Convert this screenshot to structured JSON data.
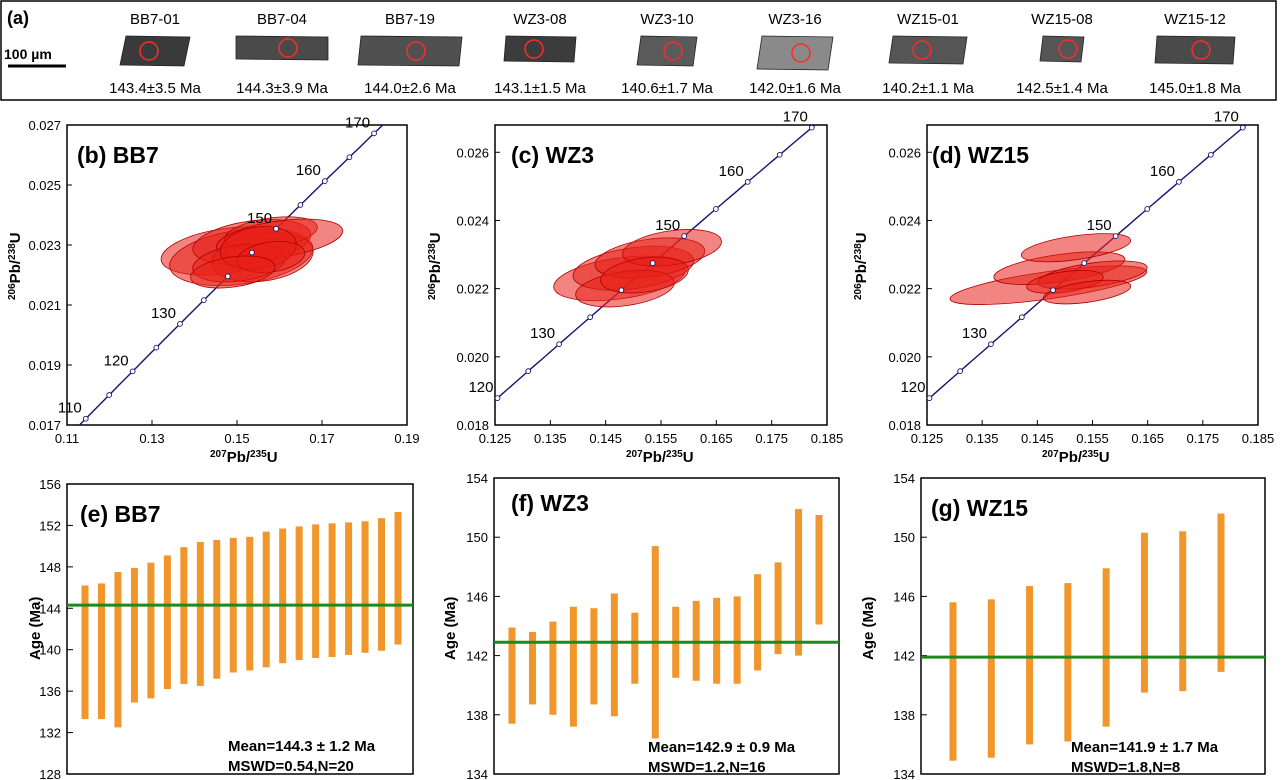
{
  "panel_a": {
    "label": "(a)",
    "scale_label": "100 µm",
    "grains": [
      {
        "name": "BB7-01",
        "age": "143.4±3.5 Ma"
      },
      {
        "name": "BB7-04",
        "age": "144.3±3.9 Ma"
      },
      {
        "name": "BB7-19",
        "age": "144.0±2.6 Ma"
      },
      {
        "name": "WZ3-08",
        "age": "143.1±1.5 Ma"
      },
      {
        "name": "WZ3-10",
        "age": "140.6±1.7 Ma"
      },
      {
        "name": "WZ3-16",
        "age": "142.0±1.6 Ma"
      },
      {
        "name": "WZ15-01",
        "age": "140.2±1.1 Ma"
      },
      {
        "name": "WZ15-08",
        "age": "142.5±1.4 Ma"
      },
      {
        "name": "WZ15-12",
        "age": "145.0±1.8 Ma"
      }
    ]
  },
  "chart_data": [
    {
      "type": "scatter",
      "panel": "(b) BB7",
      "xlabel": "207Pb/235U",
      "ylabel": "206Pb/238U",
      "xlim": [
        0.11,
        0.19
      ],
      "ylim": [
        0.017,
        0.027
      ],
      "xticks": [
        "0.11",
        "0.13",
        "0.15",
        "0.17",
        "0.19"
      ],
      "yticks": [
        "0.017",
        "0.019",
        "0.021",
        "0.023",
        "0.025",
        "0.027"
      ],
      "concordia_ages": [
        "110",
        "120",
        "130",
        "150",
        "160",
        "170"
      ],
      "ellipses": [
        {
          "x": 0.1475,
          "y": 0.0228,
          "rx": 0.0155,
          "ry": 0.00075
        },
        {
          "x": 0.151,
          "y": 0.0226,
          "rx": 0.017,
          "ry": 0.0009
        },
        {
          "x": 0.1535,
          "y": 0.0231,
          "rx": 0.014,
          "ry": 0.0007
        },
        {
          "x": 0.156,
          "y": 0.0226,
          "rx": 0.012,
          "ry": 0.0008
        },
        {
          "x": 0.158,
          "y": 0.0234,
          "rx": 0.011,
          "ry": 0.0005
        },
        {
          "x": 0.16,
          "y": 0.0232,
          "rx": 0.015,
          "ry": 0.0006
        },
        {
          "x": 0.1505,
          "y": 0.0224,
          "rx": 0.011,
          "ry": 0.0006
        },
        {
          "x": 0.155,
          "y": 0.0229,
          "rx": 0.009,
          "ry": 0.0007
        },
        {
          "x": 0.158,
          "y": 0.0226,
          "rx": 0.008,
          "ry": 0.0005
        },
        {
          "x": 0.149,
          "y": 0.0221,
          "rx": 0.01,
          "ry": 0.0005
        }
      ]
    },
    {
      "type": "scatter",
      "panel": "(c) WZ3",
      "xlabel": "207Pb/235U",
      "ylabel": "206Pb/238U",
      "xlim": [
        0.125,
        0.185
      ],
      "ylim": [
        0.018,
        0.0268
      ],
      "xticks": [
        "0.125",
        "0.135",
        "0.145",
        "0.155",
        "0.165",
        "0.175",
        "0.185"
      ],
      "yticks": [
        "0.018",
        "0.020",
        "0.022",
        "0.024",
        "0.026"
      ],
      "concordia_ages": [
        "120",
        "130",
        "150",
        "160",
        "170"
      ],
      "ellipses": [
        {
          "x": 0.1475,
          "y": 0.0223,
          "rx": 0.012,
          "ry": 0.0006
        },
        {
          "x": 0.15,
          "y": 0.0226,
          "rx": 0.011,
          "ry": 0.0006
        },
        {
          "x": 0.153,
          "y": 0.0229,
          "rx": 0.01,
          "ry": 0.00055
        },
        {
          "x": 0.157,
          "y": 0.0232,
          "rx": 0.009,
          "ry": 0.0005
        },
        {
          "x": 0.1485,
          "y": 0.022,
          "rx": 0.009,
          "ry": 0.0005
        },
        {
          "x": 0.152,
          "y": 0.0224,
          "rx": 0.008,
          "ry": 0.0005
        }
      ]
    },
    {
      "type": "scatter",
      "panel": "(d) WZ15",
      "xlabel": "207Pb/235U",
      "ylabel": "206Pb/238U",
      "xlim": [
        0.125,
        0.185
      ],
      "ylim": [
        0.018,
        0.0268
      ],
      "xticks": [
        "0.125",
        "0.135",
        "0.145",
        "0.155",
        "0.165",
        "0.175",
        "0.185"
      ],
      "yticks": [
        "0.018",
        "0.020",
        "0.022",
        "0.024",
        "0.026"
      ],
      "concordia_ages": [
        "120",
        "130",
        "150",
        "160",
        "170"
      ],
      "ellipses": [
        {
          "x": 0.147,
          "y": 0.0221,
          "rx": 0.018,
          "ry": 0.0004
        },
        {
          "x": 0.149,
          "y": 0.0226,
          "rx": 0.012,
          "ry": 0.0004
        },
        {
          "x": 0.152,
          "y": 0.0232,
          "rx": 0.01,
          "ry": 0.00035
        },
        {
          "x": 0.155,
          "y": 0.0224,
          "rx": 0.01,
          "ry": 0.00035
        },
        {
          "x": 0.15,
          "y": 0.0222,
          "rx": 0.007,
          "ry": 0.0003
        },
        {
          "x": 0.154,
          "y": 0.0219,
          "rx": 0.008,
          "ry": 0.0003
        }
      ]
    },
    {
      "type": "bar",
      "panel": "(e) BB7",
      "ylabel": "Age (Ma)",
      "ylim": [
        128,
        156
      ],
      "yticks": [
        "128",
        "132",
        "136",
        "140",
        "144",
        "148",
        "152",
        "156"
      ],
      "mean": 144.3,
      "stat_mean": "Mean=144.3 ± 1.2 Ma",
      "stat_mswd": "MSWD=0.54,N=20",
      "ranges": [
        [
          133.3,
          146.2
        ],
        [
          133.3,
          146.4
        ],
        [
          132.5,
          147.5
        ],
        [
          134.9,
          147.9
        ],
        [
          135.3,
          148.4
        ],
        [
          136.2,
          149.1
        ],
        [
          136.7,
          149.9
        ],
        [
          136.5,
          150.4
        ],
        [
          137.2,
          150.6
        ],
        [
          137.8,
          150.8
        ],
        [
          138.0,
          150.9
        ],
        [
          138.3,
          151.4
        ],
        [
          138.7,
          151.7
        ],
        [
          139.0,
          151.9
        ],
        [
          139.2,
          152.1
        ],
        [
          139.3,
          152.2
        ],
        [
          139.5,
          152.3
        ],
        [
          139.7,
          152.4
        ],
        [
          139.9,
          152.7
        ],
        [
          140.5,
          153.3
        ]
      ]
    },
    {
      "type": "bar",
      "panel": "(f) WZ3",
      "ylabel": "Age (Ma)",
      "ylim": [
        134,
        154
      ],
      "yticks": [
        "134",
        "138",
        "142",
        "146",
        "150",
        "154"
      ],
      "mean": 142.9,
      "stat_mean": "Mean=142.9 ± 0.9 Ma",
      "stat_mswd": "MSWD=1.2,N=16",
      "ranges": [
        [
          137.4,
          143.9
        ],
        [
          138.7,
          143.6
        ],
        [
          138.0,
          144.3
        ],
        [
          137.2,
          145.3
        ],
        [
          138.7,
          145.2
        ],
        [
          137.9,
          146.2
        ],
        [
          140.1,
          144.9
        ],
        [
          136.4,
          149.4
        ],
        [
          140.5,
          145.3
        ],
        [
          140.3,
          145.7
        ],
        [
          140.1,
          145.9
        ],
        [
          140.1,
          146.0
        ],
        [
          141.0,
          147.5
        ],
        [
          142.1,
          148.3
        ],
        [
          142.0,
          151.9
        ],
        [
          144.1,
          151.5
        ]
      ]
    },
    {
      "type": "bar",
      "panel": "(g) WZ15",
      "ylabel": "Age (Ma)",
      "ylim": [
        134,
        154
      ],
      "yticks": [
        "134",
        "138",
        "142",
        "146",
        "150",
        "154"
      ],
      "mean": 141.9,
      "stat_mean": "Mean=141.9 ± 1.7 Ma",
      "stat_mswd": "MSWD=1.8,N=8",
      "ranges": [
        [
          134.9,
          145.6
        ],
        [
          135.1,
          145.8
        ],
        [
          136.0,
          146.7
        ],
        [
          136.2,
          146.9
        ],
        [
          137.2,
          147.9
        ],
        [
          139.5,
          150.3
        ],
        [
          139.6,
          150.4
        ],
        [
          140.9,
          151.6
        ]
      ]
    }
  ],
  "colors": {
    "ellipse_fill": "#e8201a",
    "ellipse_stroke": "#b00000",
    "concordia": "#14146e",
    "bar": "#f0962a",
    "mean_line": "#1c8a1c"
  }
}
